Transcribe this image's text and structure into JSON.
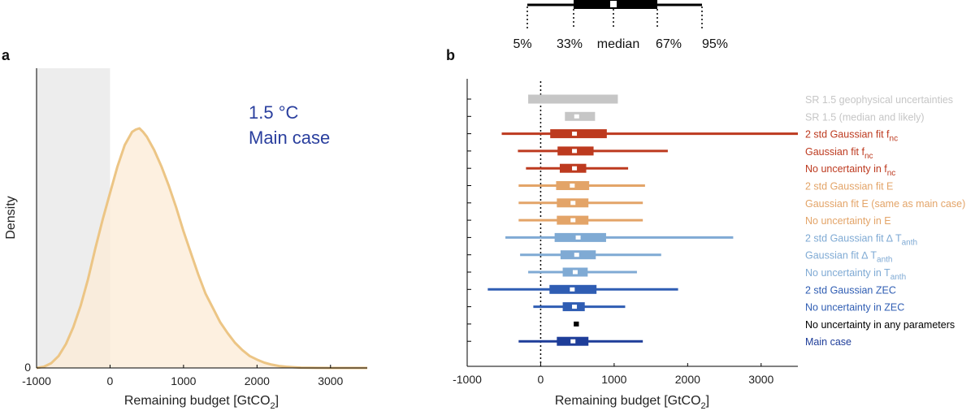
{
  "colors": {
    "shade": "#ededed",
    "density_fill": "#fcebd6",
    "density_line": "#ecc585",
    "gray": "#c6c6c6",
    "dark_red": "#bd3a1f",
    "orange": "#e3a468",
    "light_blue": "#7faad4",
    "blue": "#2f5db3",
    "navy": "#1e3d99",
    "black": "#000000"
  },
  "legend_key": {
    "labels": [
      "5%",
      "33%",
      "median",
      "67%",
      "95%"
    ]
  },
  "chart_data": [
    {
      "type": "area",
      "panel_label": "a",
      "title_lines": [
        "1.5 °C",
        "Main case"
      ],
      "xlabel": "Remaining budget [GtCO",
      "xlabel_sub": "2",
      "xlabel_end": "]",
      "ylabel": "Density",
      "xlim": [
        -1000,
        3500
      ],
      "ylim": [
        0,
        1
      ],
      "xticks": [
        -1000,
        0,
        1000,
        2000,
        3000
      ],
      "xtick_labels": [
        "-1000",
        "0",
        "1000",
        "2000",
        "3000"
      ],
      "ytick_labels": [
        "0"
      ],
      "shaded_region": [
        -1000,
        0
      ],
      "series": [
        {
          "x": [
            -1000,
            -900,
            -800,
            -700,
            -600,
            -500,
            -400,
            -300,
            -200,
            -100,
            0,
            100,
            200,
            300,
            350,
            400,
            450,
            500,
            600,
            700,
            800,
            900,
            1000,
            1100,
            1200,
            1300,
            1400,
            1500,
            1600,
            1700,
            1800,
            1900,
            2000,
            2100,
            2200,
            2300,
            2400,
            2500,
            2600,
            2800,
            3000,
            3500
          ],
          "y": [
            0.0,
            0.005,
            0.02,
            0.05,
            0.1,
            0.17,
            0.26,
            0.37,
            0.5,
            0.62,
            0.73,
            0.84,
            0.93,
            0.985,
            0.995,
            1.0,
            0.985,
            0.965,
            0.91,
            0.84,
            0.76,
            0.67,
            0.57,
            0.48,
            0.39,
            0.31,
            0.25,
            0.19,
            0.145,
            0.105,
            0.075,
            0.05,
            0.035,
            0.022,
            0.014,
            0.008,
            0.005,
            0.003,
            0.0015,
            0.0005,
            0.0,
            0.0
          ]
        }
      ]
    },
    {
      "type": "box",
      "panel_label": "b",
      "xlabel": "Remaining budget [GtCO",
      "xlabel_sub": "2",
      "xlabel_end": "]",
      "xlim": [
        -1000,
        3500
      ],
      "xticks": [
        -1000,
        0,
        1000,
        2000,
        3000
      ],
      "xtick_labels": [
        "-1000",
        "0",
        "1000",
        "2000",
        "3000"
      ],
      "zero_line": 0,
      "rows": [
        {
          "label": "SR 1.5 geophysical uncertainties",
          "sub": "",
          "color_key": "gray",
          "p5": -170,
          "p33": -170,
          "median": 400,
          "p67": 1050,
          "p95": 1050,
          "show_median": false
        },
        {
          "label": "SR 1.5 (median and likely)",
          "sub": "",
          "color_key": "gray",
          "p5": 330,
          "p33": 330,
          "median": 490,
          "p67": 740,
          "p95": 740,
          "show_median": true
        },
        {
          "label": "2 std Gaussian fit f",
          "sub": "nc",
          "color_key": "dark_red",
          "p5": -530,
          "p33": 130,
          "median": 460,
          "p67": 900,
          "p95": 3500,
          "show_median": true
        },
        {
          "label": "Gaussian fit  f",
          "sub": "nc",
          "color_key": "dark_red",
          "p5": -310,
          "p33": 230,
          "median": 460,
          "p67": 720,
          "p95": 1730,
          "show_median": true
        },
        {
          "label": "No uncertainty in f",
          "sub": "nc",
          "color_key": "dark_red",
          "p5": -200,
          "p33": 260,
          "median": 460,
          "p67": 620,
          "p95": 1190,
          "show_median": true
        },
        {
          "label": "2 std Gaussian fit E",
          "sub": "",
          "color_key": "orange",
          "p5": -300,
          "p33": 210,
          "median": 430,
          "p67": 660,
          "p95": 1420,
          "show_median": true
        },
        {
          "label": "Gaussian fit E (same as main case)",
          "sub": "",
          "color_key": "orange",
          "p5": -300,
          "p33": 220,
          "median": 440,
          "p67": 650,
          "p95": 1390,
          "show_median": true
        },
        {
          "label": "No uncertainty in E",
          "sub": "",
          "color_key": "orange",
          "p5": -300,
          "p33": 220,
          "median": 440,
          "p67": 650,
          "p95": 1390,
          "show_median": true
        },
        {
          "label": "2 std Gaussian fit ∆ T",
          "sub": "anth",
          "color_key": "light_blue",
          "p5": -480,
          "p33": 190,
          "median": 510,
          "p67": 890,
          "p95": 2620,
          "show_median": true
        },
        {
          "label": "Gaussian fit  ∆ T",
          "sub": "anth",
          "color_key": "light_blue",
          "p5": -280,
          "p33": 270,
          "median": 490,
          "p67": 750,
          "p95": 1640,
          "show_median": true
        },
        {
          "label": "No uncertainty in T",
          "sub": "anth",
          "color_key": "light_blue",
          "p5": -170,
          "p33": 300,
          "median": 470,
          "p67": 640,
          "p95": 1310,
          "show_median": true
        },
        {
          "label": "2 std Gaussian ZEC",
          "sub": "",
          "color_key": "blue",
          "p5": -720,
          "p33": 120,
          "median": 430,
          "p67": 760,
          "p95": 1870,
          "show_median": true
        },
        {
          "label": "No uncertainty in ZEC",
          "sub": "",
          "color_key": "blue",
          "p5": -100,
          "p33": 300,
          "median": 460,
          "p67": 600,
          "p95": 1150,
          "show_median": true
        },
        {
          "label": "No uncertainty in any parameters",
          "sub": "",
          "color_key": "black",
          "p5": 450,
          "p33": 450,
          "median": 490,
          "p67": 520,
          "p95": 520,
          "show_median": false
        },
        {
          "label": "Main case",
          "sub": "",
          "color_key": "navy",
          "p5": -300,
          "p33": 220,
          "median": 440,
          "p67": 650,
          "p95": 1390,
          "show_median": true
        }
      ]
    }
  ]
}
